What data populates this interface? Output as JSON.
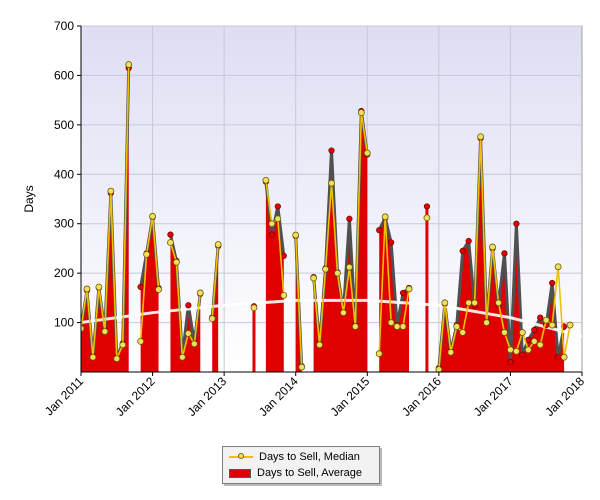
{
  "chart_data": {
    "type": "area",
    "title": "",
    "xlabel": "",
    "ylabel": "Days",
    "ylim": [
      0,
      700
    ],
    "yticks": [
      100,
      200,
      300,
      400,
      500,
      600,
      700
    ],
    "xlim": [
      "2011-01",
      "2018-01"
    ],
    "xticks": [
      "Jan 2011",
      "Jan 2012",
      "Jan 2013",
      "Jan 2014",
      "Jan 2015",
      "Jan 2016",
      "Jan 2017",
      "Jan 2018"
    ],
    "grid": true,
    "legend_position": "bottom-center",
    "series": [
      {
        "name": "Days to Sell, Median",
        "kind": "line",
        "color": "#f0c000",
        "marker_color": "#f0e060",
        "points": [
          {
            "x": "2011-01",
            "y": 88
          },
          {
            "x": "2011-02",
            "y": 168
          },
          {
            "x": "2011-03",
            "y": 30
          },
          {
            "x": "2011-04",
            "y": 172
          },
          {
            "x": "2011-05",
            "y": 82
          },
          {
            "x": "2011-06",
            "y": 366
          },
          {
            "x": "2011-07",
            "y": 27
          },
          {
            "x": "2011-08",
            "y": 55
          },
          {
            "x": "2011-09",
            "y": 622
          },
          null,
          {
            "x": "2011-11",
            "y": 62
          },
          {
            "x": "2011-12",
            "y": 238
          },
          {
            "x": "2012-01",
            "y": 315
          },
          {
            "x": "2012-02",
            "y": 167
          },
          null,
          {
            "x": "2012-04",
            "y": 262
          },
          {
            "x": "2012-05",
            "y": 222
          },
          {
            "x": "2012-06",
            "y": 30
          },
          {
            "x": "2012-07",
            "y": 78
          },
          {
            "x": "2012-08",
            "y": 57
          },
          {
            "x": "2012-09",
            "y": 160
          },
          null,
          {
            "x": "2012-11",
            "y": 108
          },
          {
            "x": "2012-12",
            "y": 258
          },
          null,
          {
            "x": "2013-06",
            "y": 130
          },
          null,
          {
            "x": "2013-08",
            "y": 388
          },
          {
            "x": "2013-09",
            "y": 300
          },
          {
            "x": "2013-10",
            "y": 310
          },
          {
            "x": "2013-11",
            "y": 155
          },
          null,
          {
            "x": "2014-01",
            "y": 277
          },
          {
            "x": "2014-02",
            "y": 10
          },
          null,
          {
            "x": "2014-04",
            "y": 190
          },
          {
            "x": "2014-05",
            "y": 55
          },
          {
            "x": "2014-06",
            "y": 208
          },
          {
            "x": "2014-07",
            "y": 382
          },
          {
            "x": "2014-08",
            "y": 200
          },
          {
            "x": "2014-09",
            "y": 120
          },
          {
            "x": "2014-10",
            "y": 212
          },
          {
            "x": "2014-11",
            "y": 92
          },
          {
            "x": "2014-12",
            "y": 525
          },
          {
            "x": "2015-01",
            "y": 443
          },
          null,
          {
            "x": "2015-03",
            "y": 37
          },
          {
            "x": "2015-04",
            "y": 314
          },
          {
            "x": "2015-05",
            "y": 100
          },
          {
            "x": "2015-06",
            "y": 92
          },
          {
            "x": "2015-07",
            "y": 92
          },
          {
            "x": "2015-08",
            "y": 168
          },
          null,
          {
            "x": "2015-11",
            "y": 312
          },
          null,
          {
            "x": "2016-01",
            "y": 5
          },
          {
            "x": "2016-02",
            "y": 140
          },
          {
            "x": "2016-03",
            "y": 40
          },
          {
            "x": "2016-04",
            "y": 92
          },
          {
            "x": "2016-05",
            "y": 80
          },
          {
            "x": "2016-06",
            "y": 140
          },
          {
            "x": "2016-07",
            "y": 140
          },
          {
            "x": "2016-08",
            "y": 476
          },
          {
            "x": "2016-09",
            "y": 100
          },
          {
            "x": "2016-10",
            "y": 253
          },
          {
            "x": "2016-11",
            "y": 140
          },
          {
            "x": "2016-12",
            "y": 80
          },
          {
            "x": "2017-01",
            "y": 45
          },
          {
            "x": "2017-02",
            "y": 42
          },
          {
            "x": "2017-03",
            "y": 80
          },
          {
            "x": "2017-04",
            "y": 45
          },
          {
            "x": "2017-05",
            "y": 62
          },
          {
            "x": "2017-06",
            "y": 55
          },
          {
            "x": "2017-07",
            "y": 105
          },
          {
            "x": "2017-08",
            "y": 95
          },
          {
            "x": "2017-09",
            "y": 213
          },
          {
            "x": "2017-10",
            "y": 30
          },
          {
            "x": "2017-11",
            "y": 95
          }
        ]
      },
      {
        "name": "Days to Sell, Average",
        "kind": "area",
        "color": "#e00000",
        "edge_color": "#505050",
        "points": [
          {
            "x": "2011-01",
            "y": 90
          },
          {
            "x": "2011-02",
            "y": 165
          },
          {
            "x": "2011-03",
            "y": 32
          },
          {
            "x": "2011-04",
            "y": 170
          },
          {
            "x": "2011-05",
            "y": 85
          },
          {
            "x": "2011-06",
            "y": 362
          },
          {
            "x": "2011-07",
            "y": 30
          },
          {
            "x": "2011-08",
            "y": 58
          },
          {
            "x": "2011-09",
            "y": 615
          },
          null,
          {
            "x": "2011-11",
            "y": 172
          },
          {
            "x": "2011-12",
            "y": 240
          },
          {
            "x": "2012-01",
            "y": 313
          },
          {
            "x": "2012-02",
            "y": 170
          },
          null,
          {
            "x": "2012-04",
            "y": 278
          },
          {
            "x": "2012-05",
            "y": 225
          },
          {
            "x": "2012-06",
            "y": 32
          },
          {
            "x": "2012-07",
            "y": 135
          },
          {
            "x": "2012-08",
            "y": 60
          },
          {
            "x": "2012-09",
            "y": 158
          },
          null,
          {
            "x": "2012-11",
            "y": 110
          },
          {
            "x": "2012-12",
            "y": 255
          },
          null,
          {
            "x": "2013-06",
            "y": 133
          },
          null,
          {
            "x": "2013-08",
            "y": 385
          },
          {
            "x": "2013-09",
            "y": 278
          },
          {
            "x": "2013-10",
            "y": 335
          },
          {
            "x": "2013-11",
            "y": 235
          },
          null,
          {
            "x": "2014-01",
            "y": 275
          },
          {
            "x": "2014-02",
            "y": 12
          },
          null,
          {
            "x": "2014-04",
            "y": 192
          },
          {
            "x": "2014-05",
            "y": 58
          },
          {
            "x": "2014-06",
            "y": 210
          },
          {
            "x": "2014-07",
            "y": 448
          },
          {
            "x": "2014-08",
            "y": 202
          },
          {
            "x": "2014-09",
            "y": 122
          },
          {
            "x": "2014-10",
            "y": 310
          },
          {
            "x": "2014-11",
            "y": 95
          },
          {
            "x": "2014-12",
            "y": 528
          },
          {
            "x": "2015-01",
            "y": 440
          },
          null,
          {
            "x": "2015-03",
            "y": 287
          },
          {
            "x": "2015-04",
            "y": 312
          },
          {
            "x": "2015-05",
            "y": 262
          },
          {
            "x": "2015-06",
            "y": 95
          },
          {
            "x": "2015-07",
            "y": 160
          },
          {
            "x": "2015-08",
            "y": 170
          },
          null,
          {
            "x": "2015-11",
            "y": 335
          },
          null,
          {
            "x": "2016-01",
            "y": 8
          },
          {
            "x": "2016-02",
            "y": 138
          },
          {
            "x": "2016-03",
            "y": 42
          },
          {
            "x": "2016-04",
            "y": 95
          },
          {
            "x": "2016-05",
            "y": 245
          },
          {
            "x": "2016-06",
            "y": 265
          },
          {
            "x": "2016-07",
            "y": 135
          },
          {
            "x": "2016-08",
            "y": 473
          },
          {
            "x": "2016-09",
            "y": 102
          },
          {
            "x": "2016-10",
            "y": 250
          },
          {
            "x": "2016-11",
            "y": 135
          },
          {
            "x": "2016-12",
            "y": 240
          },
          {
            "x": "2017-01",
            "y": 20
          },
          {
            "x": "2017-02",
            "y": 300
          },
          {
            "x": "2017-03",
            "y": 35
          },
          {
            "x": "2017-04",
            "y": 65
          },
          {
            "x": "2017-05",
            "y": 85
          },
          {
            "x": "2017-06",
            "y": 110
          },
          {
            "x": "2017-07",
            "y": 95
          },
          {
            "x": "2017-08",
            "y": 180
          },
          {
            "x": "2017-09",
            "y": 30
          },
          {
            "x": "2017-10",
            "y": 92
          }
        ]
      }
    ],
    "trendline": {
      "color": "#ffffff",
      "points": [
        {
          "x": "2011-01",
          "y": 100
        },
        {
          "x": "2012-01",
          "y": 120
        },
        {
          "x": "2013-01",
          "y": 135
        },
        {
          "x": "2014-01",
          "y": 145
        },
        {
          "x": "2015-01",
          "y": 145
        },
        {
          "x": "2016-01",
          "y": 135
        },
        {
          "x": "2017-01",
          "y": 110
        },
        {
          "x": "2018-01",
          "y": 72
        }
      ]
    }
  },
  "legend": {
    "median_label": "Days to Sell, Median",
    "average_label": "Days to Sell, Average"
  }
}
